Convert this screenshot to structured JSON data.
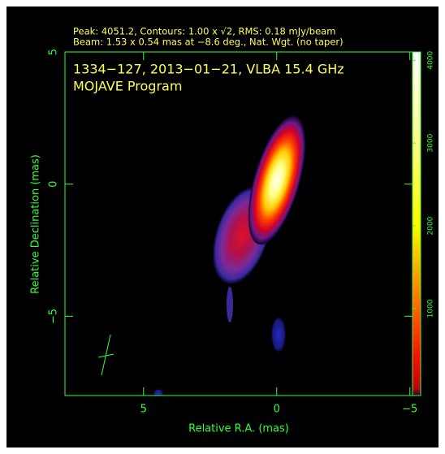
{
  "chart_data": {
    "type": "image",
    "header": [
      "Peak: 4051.2, Contours: 1.00 x √2, RMS: 0.18 mJy/beam",
      "Beam: 1.53 x 0.54 mas at −8.6 deg., Nat. Wgt. (no taper)"
    ],
    "title": "1334−127, 2013−01−21, VLBA 15.4 GHz",
    "subtitle": "MOJAVE Program",
    "xlabel": "Relative R.A. (mas)",
    "ylabel": "Relative Declination (mas)",
    "xlim": [
      7.95,
      -5.1
    ],
    "ylim": [
      -8,
      5
    ],
    "xticks": [
      5,
      0,
      {
        "value": -5,
        "label": "−5"
      }
    ],
    "yticks": [
      5,
      0,
      {
        "value": -5,
        "label": "−5"
      }
    ],
    "colorbar_lim": [
      -50,
      4100
    ],
    "colorbar_ticks": [
      1000,
      2000,
      3000,
      4000
    ],
    "axis_color": "#33ff33"
  }
}
